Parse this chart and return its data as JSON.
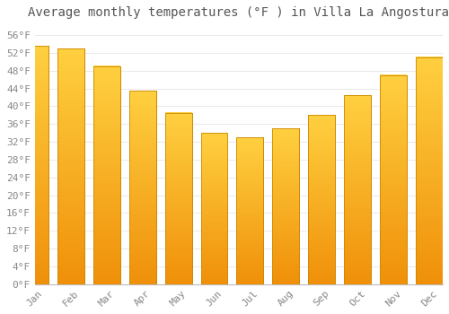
{
  "title": "Average monthly temperatures (°F ) in Villa La Angostura",
  "months": [
    "Jan",
    "Feb",
    "Mar",
    "Apr",
    "May",
    "Jun",
    "Jul",
    "Aug",
    "Sep",
    "Oct",
    "Nov",
    "Dec"
  ],
  "values": [
    53.5,
    53.0,
    49.0,
    43.5,
    38.5,
    34.0,
    33.0,
    35.0,
    38.0,
    42.5,
    47.0,
    51.0
  ],
  "bar_color_top": "#FFD040",
  "bar_color_bottom": "#F0900A",
  "bar_edge_color": "#CC8800",
  "background_color": "#FFFFFF",
  "grid_color": "#E0E0E0",
  "text_color": "#888888",
  "ylim": [
    0,
    58
  ],
  "yticks": [
    0,
    4,
    8,
    12,
    16,
    20,
    24,
    28,
    32,
    36,
    40,
    44,
    48,
    52,
    56
  ],
  "title_fontsize": 10,
  "tick_fontsize": 8
}
